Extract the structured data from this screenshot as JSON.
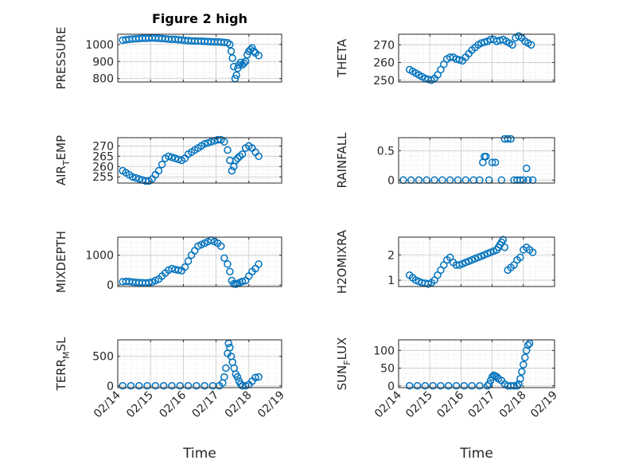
{
  "figure": {
    "title": "Figure 2 high",
    "marker_color": "#0072BD",
    "x_tick_labels": [
      "02/14",
      "02/15",
      "02/16",
      "02/17",
      "02/18",
      "02/19"
    ]
  },
  "chart_data": [
    {
      "type": "scatter",
      "ylabel": "PRESSURE",
      "xlabel": "",
      "title": "Figure 2 high",
      "xlim": [
        0,
        5
      ],
      "ylim": [
        780,
        1060
      ],
      "yticks": [
        800,
        900,
        1000
      ],
      "grid": true,
      "x": [
        0.15,
        0.25,
        0.35,
        0.45,
        0.55,
        0.65,
        0.75,
        0.85,
        0.95,
        1.05,
        1.15,
        1.25,
        1.35,
        1.45,
        1.55,
        1.65,
        1.75,
        1.85,
        1.95,
        2.05,
        2.15,
        2.25,
        2.35,
        2.45,
        2.55,
        2.65,
        2.75,
        2.85,
        2.95,
        3.05,
        3.15,
        3.25,
        3.35,
        3.42,
        3.46,
        3.5,
        3.54,
        3.58,
        3.62,
        3.66,
        3.7,
        3.75,
        3.8,
        3.85,
        3.9,
        3.95,
        4.0,
        4.05,
        4.1,
        4.15,
        4.2,
        4.3
      ],
      "y": [
        1025,
        1028,
        1030,
        1032,
        1033,
        1035,
        1036,
        1036,
        1037,
        1038,
        1037,
        1036,
        1035,
        1033,
        1031,
        1030,
        1030,
        1028,
        1026,
        1024,
        1022,
        1021,
        1020,
        1020,
        1019,
        1018,
        1017,
        1016,
        1015,
        1015,
        1014,
        1012,
        1010,
        1000,
        960,
        920,
        870,
        800,
        820,
        860,
        880,
        895,
        880,
        890,
        900,
        940,
        960,
        970,
        980,
        960,
        950,
        935
      ]
    },
    {
      "type": "scatter",
      "ylabel": "THETA",
      "xlabel": "",
      "xlim": [
        0,
        5
      ],
      "ylim": [
        249,
        276
      ],
      "yticks": [
        250,
        260,
        270
      ],
      "grid": true,
      "x": [
        0.35,
        0.45,
        0.55,
        0.65,
        0.75,
        0.85,
        0.95,
        1.05,
        1.15,
        1.25,
        1.35,
        1.45,
        1.55,
        1.65,
        1.75,
        1.85,
        1.95,
        2.05,
        2.15,
        2.25,
        2.35,
        2.45,
        2.55,
        2.65,
        2.75,
        2.85,
        2.95,
        3.05,
        3.15,
        3.25,
        3.35,
        3.45,
        3.55,
        3.65,
        3.75,
        3.85,
        3.95,
        4.05,
        4.15,
        4.25
      ],
      "y": [
        256,
        255,
        254,
        253,
        252,
        251,
        250.5,
        250,
        251,
        253,
        256,
        259,
        262,
        263,
        263,
        262,
        261.5,
        261,
        263,
        265,
        267,
        268.5,
        270,
        271,
        271.5,
        272,
        273,
        273,
        272,
        272.5,
        273,
        272,
        271,
        270,
        274,
        275,
        274,
        272,
        271,
        270
      ]
    },
    {
      "type": "scatter",
      "ylabel": "AIR_TEMP",
      "xlabel": "",
      "xlim": [
        0,
        5
      ],
      "ylim": [
        252,
        274
      ],
      "yticks": [
        255,
        260,
        265,
        270
      ],
      "grid": true,
      "x": [
        0.15,
        0.25,
        0.35,
        0.45,
        0.55,
        0.65,
        0.75,
        0.85,
        0.95,
        1.05,
        1.15,
        1.25,
        1.35,
        1.45,
        1.55,
        1.65,
        1.75,
        1.85,
        1.95,
        2.05,
        2.15,
        2.25,
        2.35,
        2.45,
        2.55,
        2.65,
        2.75,
        2.85,
        2.95,
        3.05,
        3.15,
        3.25,
        3.35,
        3.42,
        3.48,
        3.54,
        3.6,
        3.66,
        3.72,
        3.8,
        3.9,
        4.0,
        4.1,
        4.2,
        4.3
      ],
      "y": [
        258,
        257,
        256,
        255,
        254.5,
        254,
        253.5,
        253,
        253,
        254,
        256,
        258,
        261,
        264,
        265,
        264.5,
        264,
        263.5,
        263,
        264,
        266,
        267,
        268,
        269,
        270,
        271,
        271.5,
        272,
        272.5,
        273,
        273,
        272,
        268,
        263,
        258,
        260,
        263,
        264,
        265,
        266,
        269,
        270,
        269,
        267,
        265
      ]
    },
    {
      "type": "scatter",
      "ylabel": "RAINFALL",
      "xlabel": "",
      "xlim": [
        0,
        5
      ],
      "ylim": [
        -0.05,
        0.72
      ],
      "yticks": [
        0,
        0.5
      ],
      "grid": true,
      "x": [
        0.15,
        0.4,
        0.65,
        0.9,
        1.15,
        1.4,
        1.65,
        1.9,
        2.15,
        2.4,
        2.6,
        2.7,
        2.75,
        2.8,
        2.9,
        3.0,
        3.1,
        3.3,
        3.4,
        3.5,
        3.6,
        3.7,
        3.8,
        3.9,
        4.0,
        4.1,
        4.15,
        4.3
      ],
      "y": [
        0,
        0,
        0,
        0,
        0,
        0,
        0,
        0,
        0,
        0,
        0,
        0.3,
        0.4,
        0.4,
        0,
        0.3,
        0.3,
        0,
        0.7,
        0.7,
        0.7,
        0,
        0,
        0,
        0,
        0.2,
        0,
        0
      ]
    },
    {
      "type": "scatter",
      "ylabel": "MIXDEPTH",
      "xlabel": "",
      "xlim": [
        0,
        5
      ],
      "ylim": [
        -50,
        1600
      ],
      "yticks": [
        0,
        1000
      ],
      "grid": true,
      "x": [
        0.15,
        0.25,
        0.35,
        0.45,
        0.55,
        0.65,
        0.75,
        0.85,
        0.95,
        1.05,
        1.15,
        1.25,
        1.35,
        1.45,
        1.55,
        1.65,
        1.75,
        1.85,
        1.95,
        2.05,
        2.15,
        2.25,
        2.35,
        2.45,
        2.55,
        2.65,
        2.75,
        2.85,
        2.95,
        3.05,
        3.15,
        3.25,
        3.35,
        3.42,
        3.48,
        3.54,
        3.6,
        3.66,
        3.72,
        3.8,
        3.9,
        4.0,
        4.1,
        4.2,
        4.3
      ],
      "y": [
        110,
        120,
        115,
        100,
        90,
        80,
        75,
        70,
        80,
        100,
        150,
        200,
        300,
        400,
        500,
        550,
        520,
        500,
        480,
        600,
        800,
        1000,
        1150,
        1300,
        1350,
        1400,
        1450,
        1500,
        1450,
        1400,
        1300,
        900,
        700,
        450,
        150,
        40,
        30,
        50,
        80,
        120,
        150,
        300,
        450,
        550,
        700
      ]
    },
    {
      "type": "scatter",
      "ylabel": "H2OMIXRA",
      "xlabel": "",
      "xlim": [
        0,
        5
      ],
      "ylim": [
        0.75,
        2.7
      ],
      "yticks": [
        1,
        2
      ],
      "grid": true,
      "x": [
        0.35,
        0.45,
        0.55,
        0.65,
        0.75,
        0.85,
        0.95,
        1.05,
        1.15,
        1.25,
        1.35,
        1.45,
        1.55,
        1.65,
        1.75,
        1.85,
        1.95,
        2.05,
        2.15,
        2.25,
        2.35,
        2.45,
        2.55,
        2.65,
        2.75,
        2.85,
        2.95,
        3.05,
        3.15,
        3.2,
        3.25,
        3.3,
        3.35,
        3.4,
        3.5,
        3.6,
        3.7,
        3.8,
        3.9,
        4.0,
        4.1,
        4.2,
        4.3
      ],
      "y": [
        1.2,
        1.1,
        1.0,
        0.95,
        0.9,
        0.88,
        0.85,
        0.9,
        1.0,
        1.2,
        1.4,
        1.6,
        1.8,
        1.9,
        1.7,
        1.6,
        1.6,
        1.65,
        1.7,
        1.75,
        1.8,
        1.85,
        1.9,
        1.95,
        2.0,
        2.05,
        2.1,
        2.15,
        2.2,
        2.3,
        2.4,
        2.5,
        2.6,
        2.3,
        1.4,
        1.5,
        1.6,
        1.8,
        1.9,
        2.2,
        2.3,
        2.2,
        2.1
      ]
    },
    {
      "type": "scatter",
      "ylabel": "TERR_MSL",
      "xlabel": "Time",
      "xlim": [
        0,
        5
      ],
      "ylim": [
        -30,
        780
      ],
      "yticks": [
        0,
        500
      ],
      "grid": true,
      "x": [
        0.15,
        0.4,
        0.65,
        0.9,
        1.15,
        1.4,
        1.65,
        1.9,
        2.15,
        2.4,
        2.65,
        2.9,
        3.1,
        3.2,
        3.25,
        3.3,
        3.35,
        3.38,
        3.42,
        3.46,
        3.5,
        3.55,
        3.6,
        3.65,
        3.7,
        3.75,
        3.8,
        3.9,
        4.0,
        4.1,
        4.2,
        4.3
      ],
      "y": [
        0,
        0,
        0,
        0,
        0,
        0,
        0,
        0,
        0,
        0,
        0,
        0,
        0,
        50,
        150,
        300,
        550,
        720,
        650,
        500,
        400,
        300,
        200,
        150,
        80,
        30,
        0,
        0,
        20,
        80,
        140,
        150
      ]
    },
    {
      "type": "scatter",
      "ylabel": "SUN_FLUX",
      "xlabel": "Time",
      "xlim": [
        0,
        5
      ],
      "ylim": [
        -5,
        130
      ],
      "yticks": [
        0,
        50,
        100
      ],
      "grid": true,
      "x": [
        0.35,
        0.6,
        0.85,
        1.1,
        1.35,
        1.6,
        1.85,
        2.1,
        2.35,
        2.6,
        2.85,
        2.9,
        2.95,
        3.0,
        3.05,
        3.1,
        3.15,
        3.2,
        3.3,
        3.4,
        3.5,
        3.6,
        3.7,
        3.8,
        3.85,
        3.9,
        3.95,
        4.0,
        4.05,
        4.1,
        4.15,
        4.2
      ],
      "y": [
        0,
        0,
        0,
        0,
        0,
        0,
        0,
        0,
        0,
        0,
        0,
        5,
        15,
        25,
        30,
        28,
        25,
        20,
        15,
        5,
        0,
        0,
        0,
        0,
        5,
        20,
        40,
        60,
        80,
        100,
        115,
        120
      ]
    }
  ]
}
